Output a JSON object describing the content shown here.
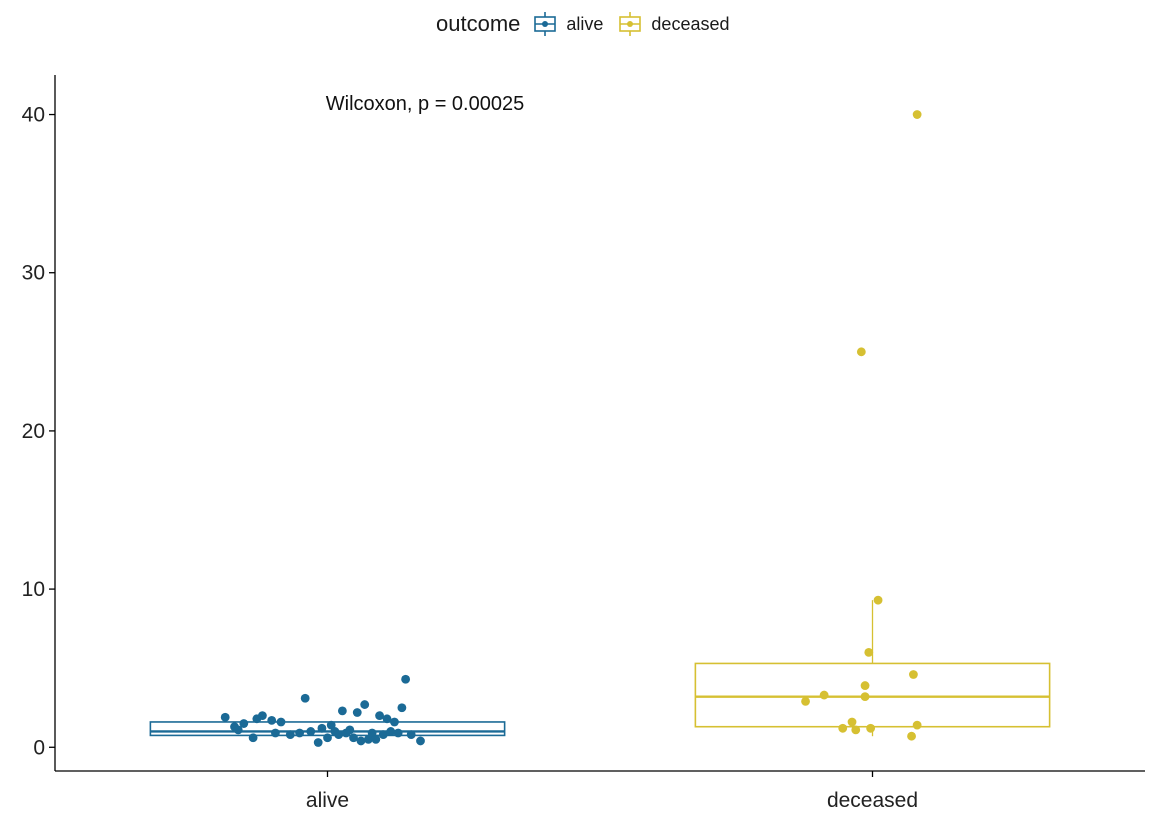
{
  "legend": {
    "title": "outcome",
    "items": [
      {
        "label": "alive",
        "color": "#1b6a96"
      },
      {
        "label": "deceased",
        "color": "#d6c032"
      }
    ]
  },
  "chart_data": {
    "type": "box",
    "categories": [
      "alive",
      "deceased"
    ],
    "annotation": "Wilcoxon, p = 0.00025",
    "xlabel": "",
    "ylabel": "",
    "ylim": [
      -1.5,
      42.5
    ],
    "yticks": [
      0,
      10,
      20,
      30,
      40
    ],
    "grid": false,
    "legend_position": "top",
    "boxes": [
      {
        "category": "alive",
        "color": "#1b6a96",
        "q1": 0.75,
        "median": 1.0,
        "q3": 1.6,
        "whisker_low": 0.75,
        "whisker_high": 1.6
      },
      {
        "category": "deceased",
        "color": "#d6c032",
        "q1": 1.3,
        "median": 3.2,
        "q3": 5.3,
        "whisker_low": 0.7,
        "whisker_high": 9.3
      }
    ],
    "points": [
      {
        "category": "alive",
        "values": [
          1.9,
          1.3,
          1.1,
          1.5,
          0.6,
          1.8,
          2.0,
          1.7,
          0.9,
          1.6,
          0.8,
          0.9,
          3.1,
          1.0,
          0.3,
          1.2,
          0.6,
          1.4,
          1.0,
          0.8,
          2.3,
          0.9,
          1.1,
          0.6,
          2.2,
          0.4,
          2.7,
          0.5,
          0.9,
          0.5,
          2.0,
          0.8,
          1.8,
          1.0,
          1.6,
          0.9,
          2.5,
          4.3,
          0.8,
          0.4
        ],
        "jitter": [
          -0.55,
          -0.5,
          -0.48,
          -0.45,
          -0.4,
          -0.38,
          -0.35,
          -0.3,
          -0.28,
          -0.25,
          -0.2,
          -0.15,
          -0.12,
          -0.09,
          -0.05,
          -0.03,
          0.0,
          0.02,
          0.04,
          0.06,
          0.08,
          0.1,
          0.12,
          0.14,
          0.16,
          0.18,
          0.2,
          0.22,
          0.24,
          0.26,
          0.28,
          0.3,
          0.32,
          0.34,
          0.36,
          0.38,
          0.4,
          0.42,
          0.45,
          0.5
        ]
      },
      {
        "category": "deceased",
        "values": [
          40,
          25,
          9.3,
          6.0,
          4.6,
          3.9,
          3.3,
          3.2,
          2.9,
          1.6,
          1.4,
          1.2,
          1.2,
          1.1,
          0.7
        ],
        "jitter": [
          0.24,
          -0.06,
          0.03,
          -0.02,
          0.22,
          -0.04,
          -0.26,
          -0.04,
          -0.36,
          -0.11,
          0.24,
          -0.16,
          -0.01,
          -0.09,
          0.21
        ]
      }
    ]
  }
}
